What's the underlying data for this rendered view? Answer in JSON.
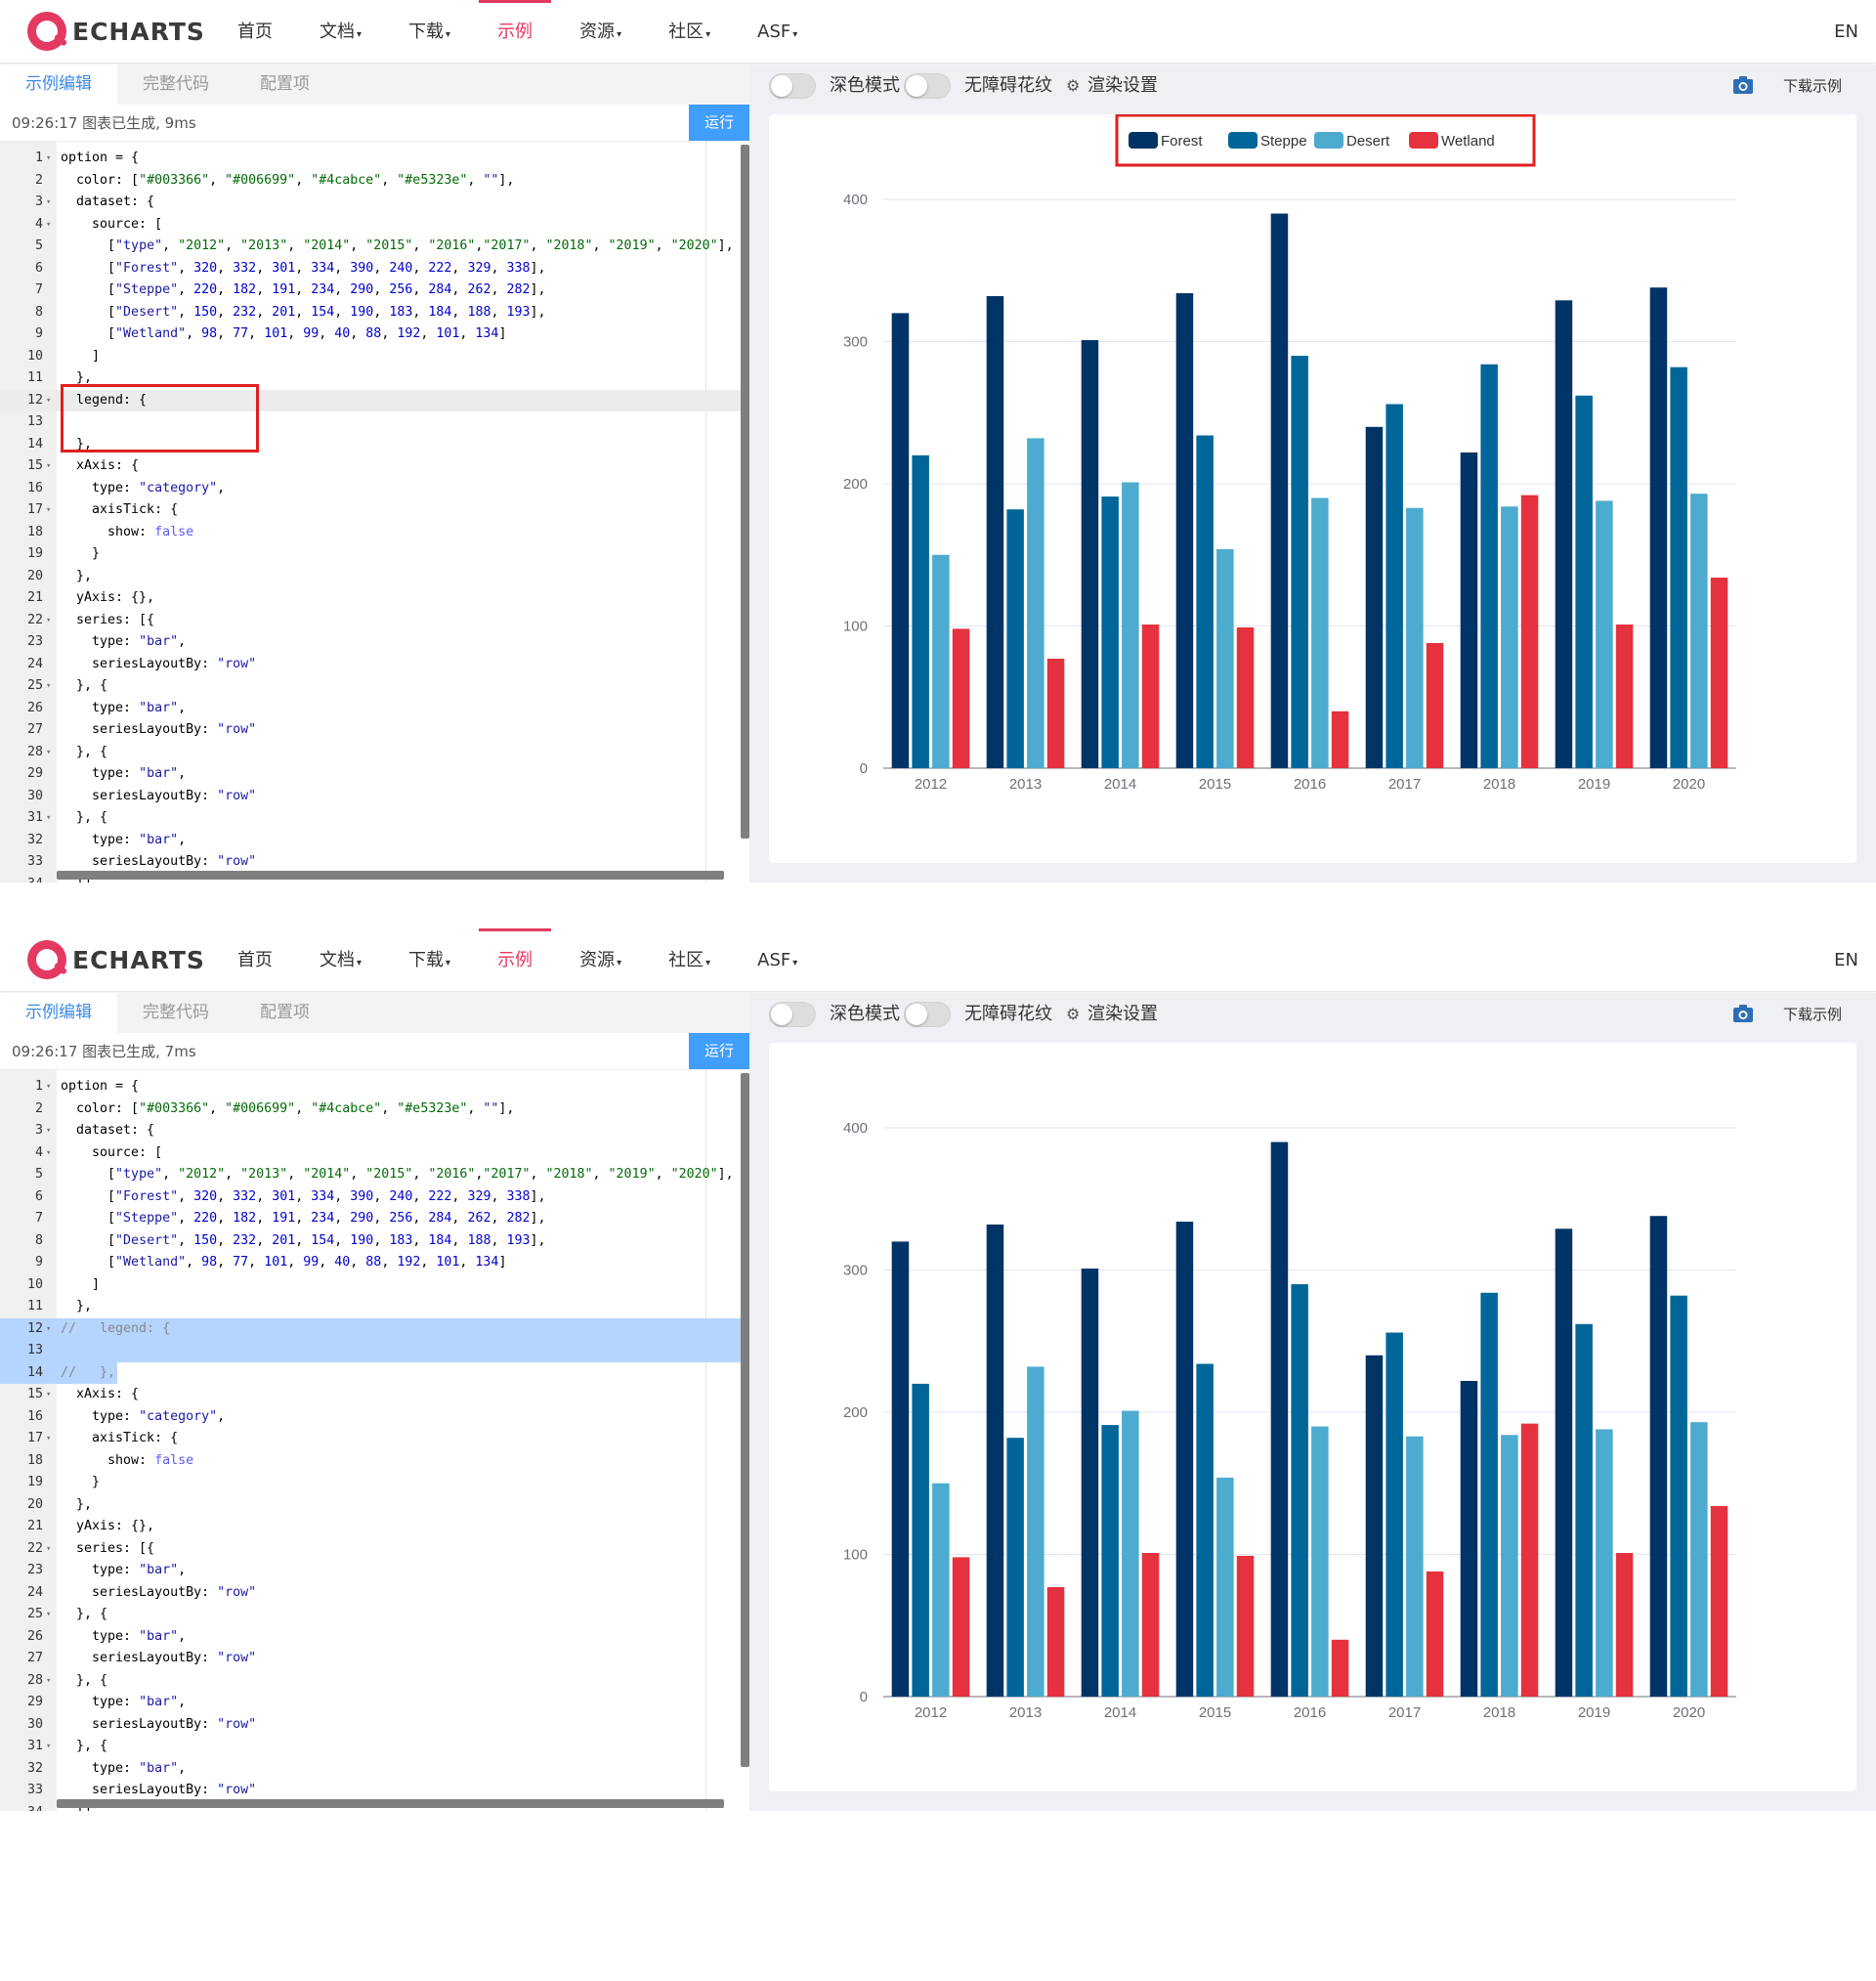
{
  "nav": {
    "logo_text": "ECHARTS",
    "items": [
      {
        "label": "首页",
        "caret": ""
      },
      {
        "label": "文档",
        "caret": "▾"
      },
      {
        "label": "下载",
        "caret": "▾"
      },
      {
        "label": "示例",
        "caret": ""
      },
      {
        "label": "资源",
        "caret": "▾"
      },
      {
        "label": "社区",
        "caret": "▾"
      },
      {
        "label": "ASF",
        "caret": "▾"
      }
    ],
    "lang": "EN"
  },
  "editor": {
    "tabs": [
      "示例编辑",
      "完整代码",
      "配置项"
    ],
    "run_label": "运行"
  },
  "toolbar": {
    "dark_mode": "深色模式",
    "aria": "无障碍花纹",
    "render": "渲染设置",
    "download": "下载示例"
  },
  "panels": [
    {
      "status": "09:26:17   图表已生成, 9ms",
      "legend_shown": true,
      "legend_commented": false
    },
    {
      "status": "09:26:17   图表已生成, 7ms",
      "legend_shown": false,
      "legend_commented": true
    }
  ],
  "code_lines": [
    [
      "option = {"
    ],
    [
      "  color: [\"#003366\", \"#006699\", \"#4cabce\", \"#e5323e\", \"\"],"
    ],
    [
      "  dataset: {"
    ],
    [
      "    source: ["
    ],
    [
      "      [\"type\", \"2012\", \"2013\", \"2014\", \"2015\", \"2016\",\"2017\", \"2018\", \"2019\", \"2020\"],"
    ],
    [
      "      [\"Forest\", 320, 332, 301, 334, 390, 240, 222, 329, 338],"
    ],
    [
      "      [\"Steppe\", 220, 182, 191, 234, 290, 256, 284, 262, 282],"
    ],
    [
      "      [\"Desert\", 150, 232, 201, 154, 190, 183, 184, 188, 193],"
    ],
    [
      "      [\"Wetland\", 98, 77, 101, 99, 40, 88, 192, 101, 134]"
    ],
    [
      "    ]"
    ],
    [
      "  },"
    ],
    [
      "  legend: {"
    ],
    [
      ""
    ],
    [
      "  },"
    ],
    [
      "  xAxis: {"
    ],
    [
      "    type: \"category\","
    ],
    [
      "    axisTick: {"
    ],
    [
      "      show: false"
    ],
    [
      "    }"
    ],
    [
      "  },"
    ],
    [
      "  yAxis: {},"
    ],
    [
      "  series: [{"
    ],
    [
      "    type: \"bar\","
    ],
    [
      "    seriesLayoutBy: \"row\""
    ],
    [
      "  }, {"
    ],
    [
      "    type: \"bar\","
    ],
    [
      "    seriesLayoutBy: \"row\""
    ],
    [
      "  }, {"
    ],
    [
      "    type: \"bar\","
    ],
    [
      "    seriesLayoutBy: \"row\""
    ],
    [
      "  }, {"
    ],
    [
      "    type: \"bar\","
    ],
    [
      "    seriesLayoutBy: \"row\""
    ],
    [
      "  }]"
    ]
  ],
  "code_lines_p2_overrides": {
    "12": "//   legend: {",
    "14": "//   },"
  },
  "chart_data": {
    "type": "bar",
    "categories": [
      "2012",
      "2013",
      "2014",
      "2015",
      "2016",
      "2017",
      "2018",
      "2019",
      "2020"
    ],
    "series": [
      {
        "name": "Forest",
        "color": "#003366",
        "values": [
          320,
          332,
          301,
          334,
          390,
          240,
          222,
          329,
          338
        ]
      },
      {
        "name": "Steppe",
        "color": "#006699",
        "values": [
          220,
          182,
          191,
          234,
          290,
          256,
          284,
          262,
          282
        ]
      },
      {
        "name": "Desert",
        "color": "#4cabce",
        "values": [
          150,
          232,
          201,
          154,
          190,
          183,
          184,
          188,
          193
        ]
      },
      {
        "name": "Wetland",
        "color": "#e5323e",
        "values": [
          98,
          77,
          101,
          99,
          40,
          88,
          192,
          101,
          134
        ]
      }
    ],
    "ylim": [
      0,
      400
    ],
    "yticks": [
      "0",
      "100",
      "200",
      "300",
      "400"
    ],
    "grid": true,
    "legend_position": "top-center"
  },
  "colors": {
    "accent": "#e43961",
    "run_button": "#409eff",
    "highlight_box": "#e02020"
  }
}
